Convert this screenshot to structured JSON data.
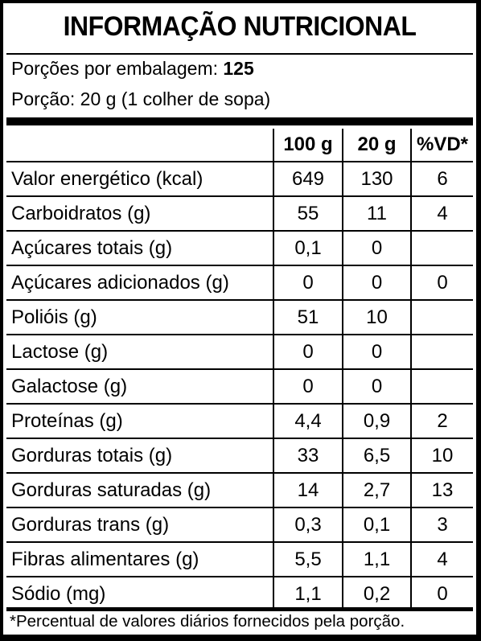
{
  "title": "INFORMAÇÃO NUTRICIONAL",
  "servings": {
    "per_package_label": "Porções por embalagem:",
    "per_package_value": "125",
    "portion": "Porção: 20 g (1 colher de sopa)"
  },
  "table": {
    "headers": [
      "",
      "100 g",
      "20 g",
      "%VD*"
    ],
    "rows": [
      {
        "name": "Valor energético (kcal)",
        "v100": "649",
        "v20": "130",
        "vd": "6"
      },
      {
        "name": "Carboidratos (g)",
        "v100": "55",
        "v20": "11",
        "vd": "4"
      },
      {
        "name": "Açúcares totais (g)",
        "v100": "0,1",
        "v20": "0",
        "vd": ""
      },
      {
        "name": "Açúcares adicionados (g)",
        "v100": "0",
        "v20": "0",
        "vd": "0"
      },
      {
        "name": "Polióis (g)",
        "v100": "51",
        "v20": "10",
        "vd": ""
      },
      {
        "name": "Lactose (g)",
        "v100": "0",
        "v20": "0",
        "vd": ""
      },
      {
        "name": "Galactose (g)",
        "v100": "0",
        "v20": "0",
        "vd": ""
      },
      {
        "name": "Proteínas (g)",
        "v100": "4,4",
        "v20": "0,9",
        "vd": "2"
      },
      {
        "name": "Gorduras totais (g)",
        "v100": "33",
        "v20": "6,5",
        "vd": "10"
      },
      {
        "name": "Gorduras saturadas (g)",
        "v100": "14",
        "v20": "2,7",
        "vd": "13"
      },
      {
        "name": "Gorduras trans (g)",
        "v100": "0,3",
        "v20": "0,1",
        "vd": "3"
      },
      {
        "name": "Fibras alimentares (g)",
        "v100": "5,5",
        "v20": "1,1",
        "vd": "4"
      },
      {
        "name": "Sódio (mg)",
        "v100": "1,1",
        "v20": "0,2",
        "vd": "0"
      }
    ]
  },
  "footnote": "*Percentual de valores diários fornecidos pela porção."
}
